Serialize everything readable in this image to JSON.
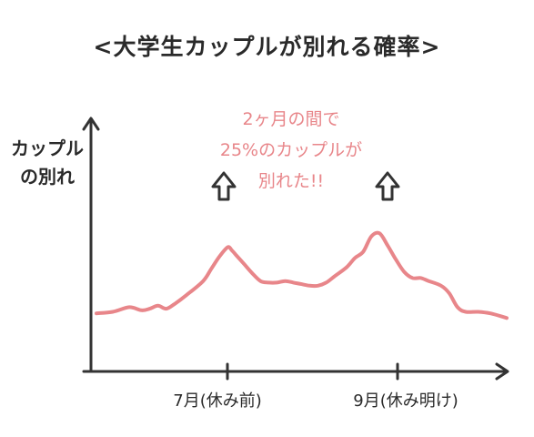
{
  "chart_data": {
    "type": "line",
    "title": "<大学生カップルが別れる確率>",
    "ylabel_lines": [
      "カップル",
      "の別れ"
    ],
    "xlabel": "",
    "categories": [
      "7月(休み前)",
      "9月(休み明け)"
    ],
    "annotation_lines": [
      "2ヶ月の間で",
      "25%のカップルが",
      "別れた!!"
    ],
    "series": [
      {
        "color": "#e8868a",
        "points": [
          [
            0,
            20
          ],
          [
            4,
            21
          ],
          [
            8,
            24
          ],
          [
            11,
            22
          ],
          [
            13,
            23
          ],
          [
            15,
            25
          ],
          [
            17,
            23
          ],
          [
            19,
            26
          ],
          [
            22,
            32
          ],
          [
            26,
            41
          ],
          [
            28,
            49
          ],
          [
            30,
            57
          ],
          [
            32,
            63
          ],
          [
            33,
            61
          ],
          [
            34,
            58
          ],
          [
            36,
            52
          ],
          [
            38,
            46
          ],
          [
            40,
            41
          ],
          [
            42,
            40
          ],
          [
            44,
            40
          ],
          [
            46,
            41
          ],
          [
            48,
            40
          ],
          [
            50,
            39
          ],
          [
            52,
            38
          ],
          [
            54,
            38
          ],
          [
            56,
            40
          ],
          [
            58,
            44
          ],
          [
            61,
            50
          ],
          [
            63,
            56
          ],
          [
            65,
            60
          ],
          [
            67,
            70
          ],
          [
            69,
            72
          ],
          [
            71,
            64
          ],
          [
            73,
            55
          ],
          [
            75,
            47
          ],
          [
            77,
            43
          ],
          [
            79,
            43
          ],
          [
            81,
            41
          ],
          [
            84,
            38
          ],
          [
            86,
            33
          ],
          [
            88,
            24
          ],
          [
            90,
            21
          ],
          [
            93,
            21
          ],
          [
            96,
            20
          ],
          [
            100,
            17
          ]
        ]
      }
    ],
    "xlim": [
      0,
      100
    ],
    "ylim": [
      0,
      100
    ],
    "axes_color": "#333333",
    "grid": false
  }
}
